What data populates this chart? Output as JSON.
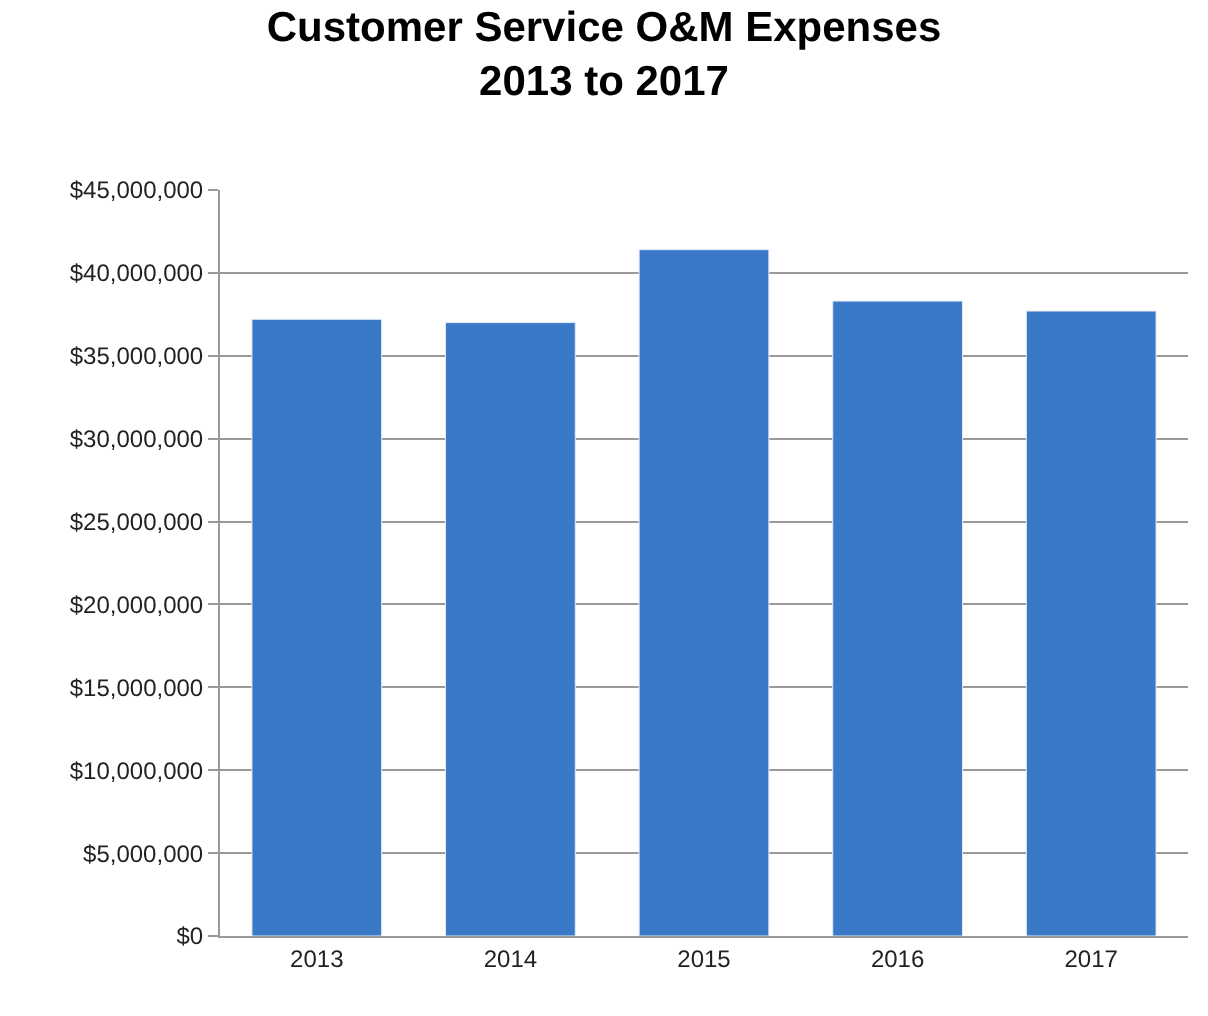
{
  "chart_data": {
    "type": "bar",
    "title": "Customer Service O&M Expenses\n2013 to 2017",
    "categories": [
      "2013",
      "2014",
      "2015",
      "2016",
      "2017"
    ],
    "values": [
      37200000,
      37000000,
      41400000,
      38300000,
      37700000
    ],
    "color": "#3a78c8",
    "ylim": [
      0,
      45000000
    ],
    "yticks": [
      {
        "value": 0,
        "label": "$0"
      },
      {
        "value": 5000000,
        "label": "$5,000,000"
      },
      {
        "value": 10000000,
        "label": "$10,000,000"
      },
      {
        "value": 15000000,
        "label": "$15,000,000"
      },
      {
        "value": 20000000,
        "label": "$20,000,000"
      },
      {
        "value": 25000000,
        "label": "$25,000,000"
      },
      {
        "value": 30000000,
        "label": "$30,000,000"
      },
      {
        "value": 35000000,
        "label": "$35,000,000"
      },
      {
        "value": 40000000,
        "label": "$40,000,000"
      },
      {
        "value": 45000000,
        "label": "$45,000,000"
      }
    ],
    "grid": "y"
  }
}
